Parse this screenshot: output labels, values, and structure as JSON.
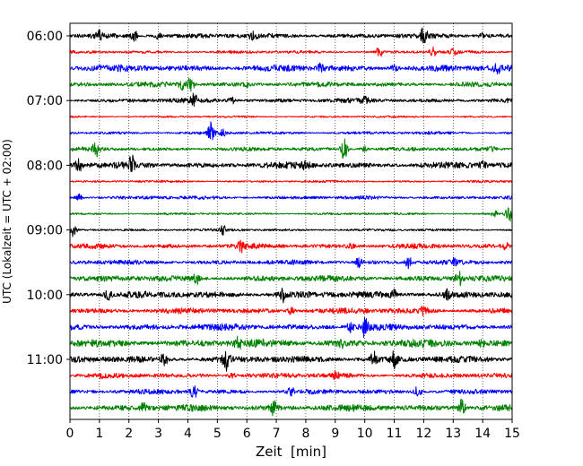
{
  "chart_data": {
    "type": "line",
    "title": "",
    "xlabel": "Zeit  [min]",
    "ylabel": "UTC (Lokalzeit = UTC + 02:00)",
    "xlim": [
      0,
      15
    ],
    "x_ticks": [
      "0",
      "1",
      "2",
      "3",
      "4",
      "5",
      "6",
      "7",
      "8",
      "9",
      "10",
      "11",
      "12",
      "13",
      "14",
      "15"
    ],
    "y_tick_labels": [
      "06:00",
      "07:00",
      "08:00",
      "09:00",
      "10:00",
      "11:00"
    ],
    "y_tick_trace_index": [
      0,
      4,
      8,
      12,
      16,
      20
    ],
    "grid": "vertical-dotted",
    "color_cycle": [
      "#000000",
      "#ff0000",
      "#0000ff",
      "#008000"
    ],
    "traces": [
      {
        "start": "06:00",
        "color": "#000000",
        "amp": 0.3,
        "bursts": [
          [
            1.0,
            0.6
          ],
          [
            2.2,
            0.9
          ],
          [
            3.0,
            0.8
          ],
          [
            6.2,
            0.5
          ],
          [
            12.0,
            1.6
          ],
          [
            14.0,
            0.4
          ]
        ]
      },
      {
        "start": "06:15",
        "color": "#ff0000",
        "amp": 0.18,
        "bursts": [
          [
            10.5,
            0.7
          ],
          [
            12.3,
            0.9
          ],
          [
            13.0,
            0.4
          ]
        ]
      },
      {
        "start": "06:30",
        "color": "#0000ff",
        "amp": 0.4,
        "bursts": [
          [
            8.5,
            0.6
          ],
          [
            11.0,
            0.5
          ],
          [
            14.5,
            0.5
          ]
        ]
      },
      {
        "start": "06:45",
        "color": "#008000",
        "amp": 0.3,
        "bursts": [
          [
            3.8,
            0.7
          ],
          [
            4.1,
            1.0
          ],
          [
            6.0,
            0.4
          ]
        ]
      },
      {
        "start": "07:00",
        "color": "#000000",
        "amp": 0.28,
        "bursts": [
          [
            4.2,
            0.8
          ],
          [
            5.5,
            0.5
          ],
          [
            10.0,
            0.4
          ]
        ]
      },
      {
        "start": "07:15",
        "color": "#ff0000",
        "amp": 0.12,
        "bursts": []
      },
      {
        "start": "07:30",
        "color": "#0000ff",
        "amp": 0.18,
        "bursts": [
          [
            4.8,
            1.8
          ],
          [
            5.2,
            0.5
          ]
        ]
      },
      {
        "start": "07:45",
        "color": "#008000",
        "amp": 0.24,
        "bursts": [
          [
            0.9,
            1.3
          ],
          [
            9.3,
            1.6
          ],
          [
            10.0,
            0.4
          ],
          [
            14.3,
            0.4
          ]
        ]
      },
      {
        "start": "08:00",
        "color": "#000000",
        "amp": 0.38,
        "bursts": [
          [
            0.3,
            0.9
          ],
          [
            2.1,
            1.2
          ],
          [
            8.0,
            0.5
          ],
          [
            14.0,
            0.5
          ]
        ]
      },
      {
        "start": "08:15",
        "color": "#ff0000",
        "amp": 0.14,
        "bursts": []
      },
      {
        "start": "08:30",
        "color": "#0000ff",
        "amp": 0.22,
        "bursts": [
          [
            0.3,
            0.5
          ]
        ]
      },
      {
        "start": "08:45",
        "color": "#008000",
        "amp": 0.14,
        "bursts": [
          [
            14.4,
            0.5
          ],
          [
            14.9,
            1.3
          ]
        ]
      },
      {
        "start": "09:00",
        "color": "#000000",
        "amp": 0.16,
        "bursts": [
          [
            0.1,
            0.9
          ],
          [
            5.2,
            0.6
          ]
        ]
      },
      {
        "start": "09:15",
        "color": "#ff0000",
        "amp": 0.3,
        "bursts": [
          [
            5.8,
            0.7
          ],
          [
            9.5,
            0.5
          ],
          [
            14.8,
            0.5
          ]
        ]
      },
      {
        "start": "09:30",
        "color": "#0000ff",
        "amp": 0.28,
        "bursts": [
          [
            9.8,
            0.6
          ],
          [
            11.5,
            0.9
          ],
          [
            13.0,
            0.5
          ]
        ]
      },
      {
        "start": "09:45",
        "color": "#008000",
        "amp": 0.36,
        "bursts": [
          [
            4.3,
            0.7
          ],
          [
            13.2,
            1.0
          ]
        ]
      },
      {
        "start": "10:00",
        "color": "#000000",
        "amp": 0.4,
        "bursts": [
          [
            1.3,
            0.7
          ],
          [
            7.2,
            1.0
          ],
          [
            11.0,
            0.7
          ],
          [
            12.8,
            0.6
          ]
        ]
      },
      {
        "start": "10:15",
        "color": "#ff0000",
        "amp": 0.34,
        "bursts": [
          [
            7.5,
            0.5
          ],
          [
            12.0,
            0.5
          ]
        ]
      },
      {
        "start": "10:30",
        "color": "#0000ff",
        "amp": 0.4,
        "bursts": [
          [
            10.0,
            1.3
          ],
          [
            9.5,
            0.6
          ]
        ]
      },
      {
        "start": "10:45",
        "color": "#008000",
        "amp": 0.48,
        "bursts": [
          [
            5.7,
            0.7
          ],
          [
            9.2,
            0.6
          ],
          [
            14.0,
            0.5
          ]
        ]
      },
      {
        "start": "11:00",
        "color": "#000000",
        "amp": 0.4,
        "bursts": [
          [
            3.2,
            0.9
          ],
          [
            5.3,
            1.5
          ],
          [
            10.3,
            1.0
          ],
          [
            11.0,
            1.1
          ]
        ]
      },
      {
        "start": "11:15",
        "color": "#ff0000",
        "amp": 0.3,
        "bursts": [
          [
            1.1,
            0.4
          ],
          [
            5.5,
            0.4
          ],
          [
            9.0,
            0.4
          ]
        ]
      },
      {
        "start": "11:30",
        "color": "#0000ff",
        "amp": 0.3,
        "bursts": [
          [
            4.2,
            1.0
          ],
          [
            11.8,
            0.8
          ],
          [
            7.5,
            0.5
          ]
        ]
      },
      {
        "start": "11:45",
        "color": "#008000",
        "amp": 0.4,
        "bursts": [
          [
            2.5,
            0.6
          ],
          [
            6.9,
            0.9
          ],
          [
            13.3,
            1.2
          ]
        ]
      }
    ]
  }
}
